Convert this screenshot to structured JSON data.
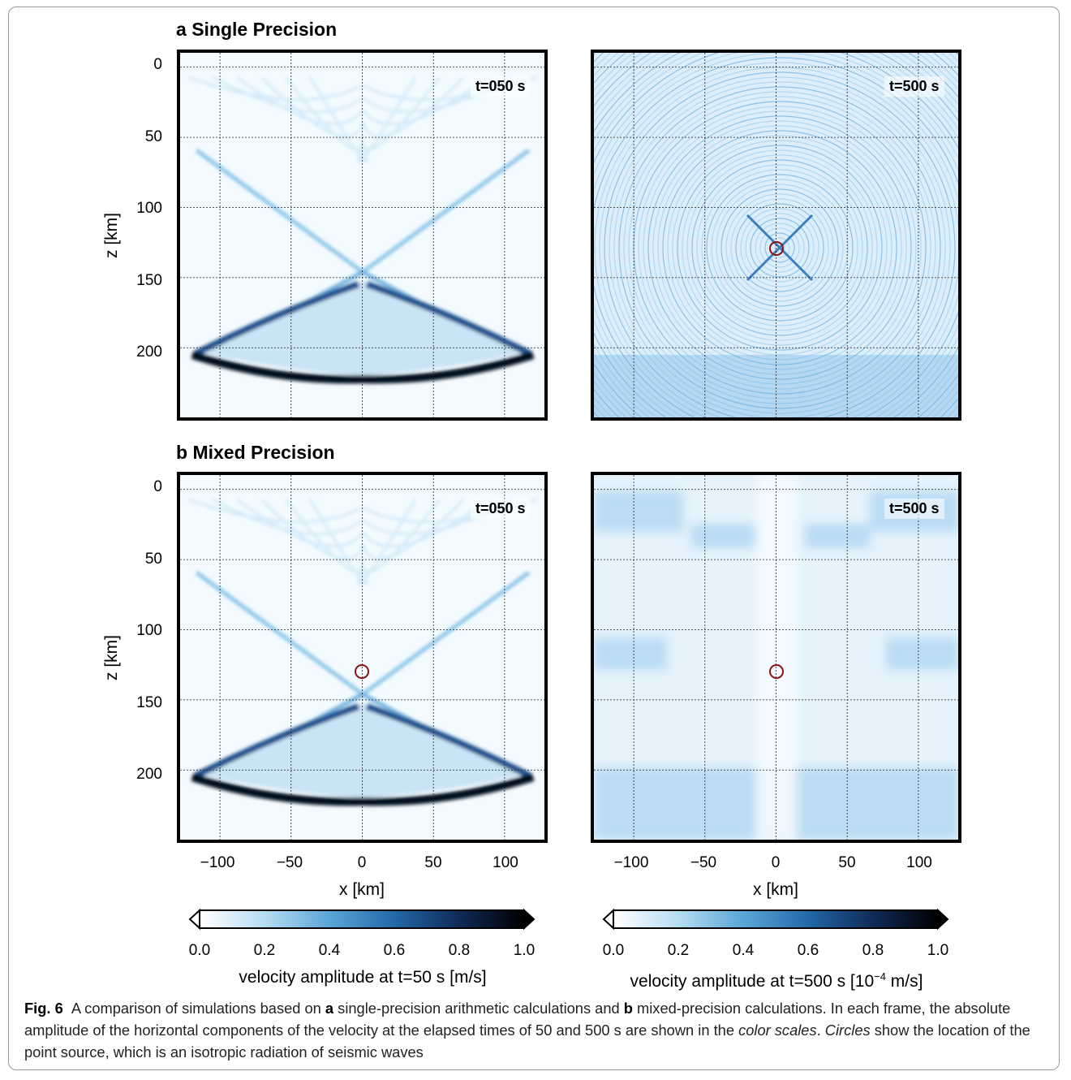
{
  "panels": {
    "a": {
      "letter": "a",
      "title": "Single Precision"
    },
    "b": {
      "letter": "b",
      "title": "Mixed Precision"
    }
  },
  "time_labels": {
    "left": "t=050 s",
    "right": "t=500 s"
  },
  "axes": {
    "y_label": "z [km]",
    "x_label": "x [km]",
    "y_ticks": [
      "0",
      "50",
      "100",
      "150",
      "200"
    ],
    "x_ticks": [
      "−100",
      "−50",
      "0",
      "50",
      "100"
    ]
  },
  "colorbars": {
    "left": {
      "ticks": [
        "0.0",
        "0.2",
        "0.4",
        "0.6",
        "0.8",
        "1.0"
      ],
      "label": "velocity amplitude at t=50 s [m/s]"
    },
    "right": {
      "ticks": [
        "0.0",
        "0.2",
        "0.4",
        "0.6",
        "0.8",
        "1.0"
      ],
      "label_prefix": "velocity amplitude at t=500 s [10",
      "label_exp": "−4",
      "label_suffix": " m/s]"
    },
    "colors": [
      "#ffffff",
      "#b7dcf2",
      "#5aa6d8",
      "#2368a8",
      "#102a57",
      "#000000"
    ]
  },
  "source_location": {
    "x_km": 0,
    "z_km": 128
  },
  "caption": {
    "fig": "Fig. 6",
    "t1": "A comparison of simulations based on ",
    "b1": "a",
    "t2": " single-precision arithmetic calculations and ",
    "b2": "b",
    "t3": " mixed-precision calculations. In each frame, the absolute amplitude of the horizontal components of the velocity at the elapsed times of 50 and 500 s are shown in the ",
    "i1": "color scales",
    "t4": ". ",
    "i2": "Circles",
    "t5": " show the location of the point source, which is an isotropic radiation of seismic waves"
  }
}
